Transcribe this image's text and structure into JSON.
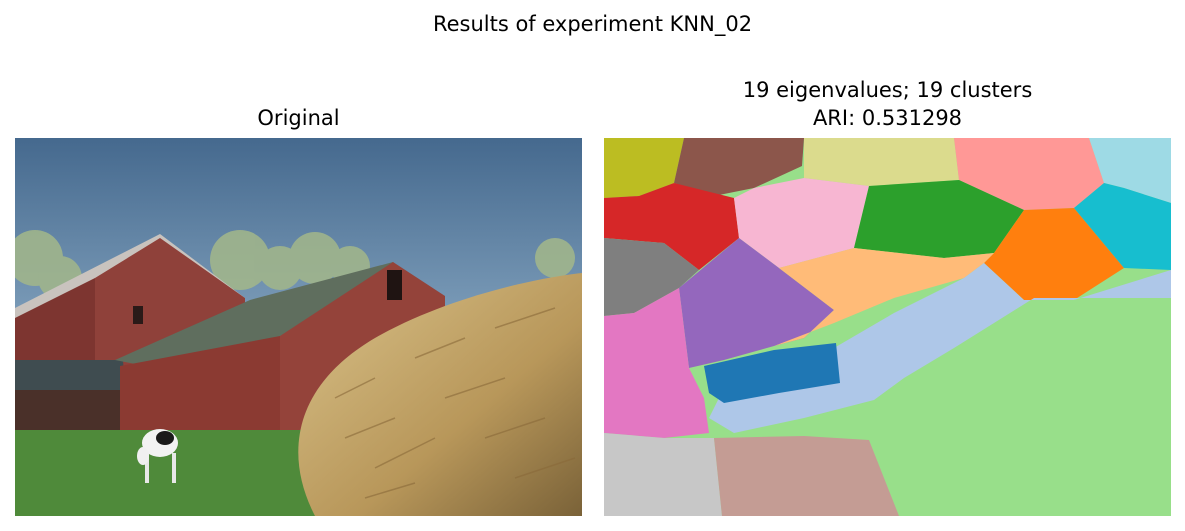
{
  "figure": {
    "suptitle": "Results of experiment KNN_02",
    "left_panel": {
      "title": "Original"
    },
    "right_panel": {
      "title_line1": "19 eigenvalues; 19 clusters",
      "title_line2": "ARI: 0.531298"
    }
  },
  "colors": {
    "sky": "#5b84a8",
    "barn": "#8b3a32",
    "roof": "#5f6e5e",
    "hay": "#c4a868",
    "grass": "#4f8a3a",
    "segment_palette": [
      "#bcbd22",
      "#8c564b",
      "#dbdb8d",
      "#ff9896",
      "#9edae5",
      "#d62728",
      "#f7b6d2",
      "#2ca02c",
      "#ff7f0e",
      "#17becf",
      "#7f7f7f",
      "#9467bd",
      "#ffbb78",
      "#aec7e8",
      "#e377c2",
      "#1f77b4",
      "#98df8a",
      "#c7c7c7",
      "#c49c94"
    ]
  }
}
